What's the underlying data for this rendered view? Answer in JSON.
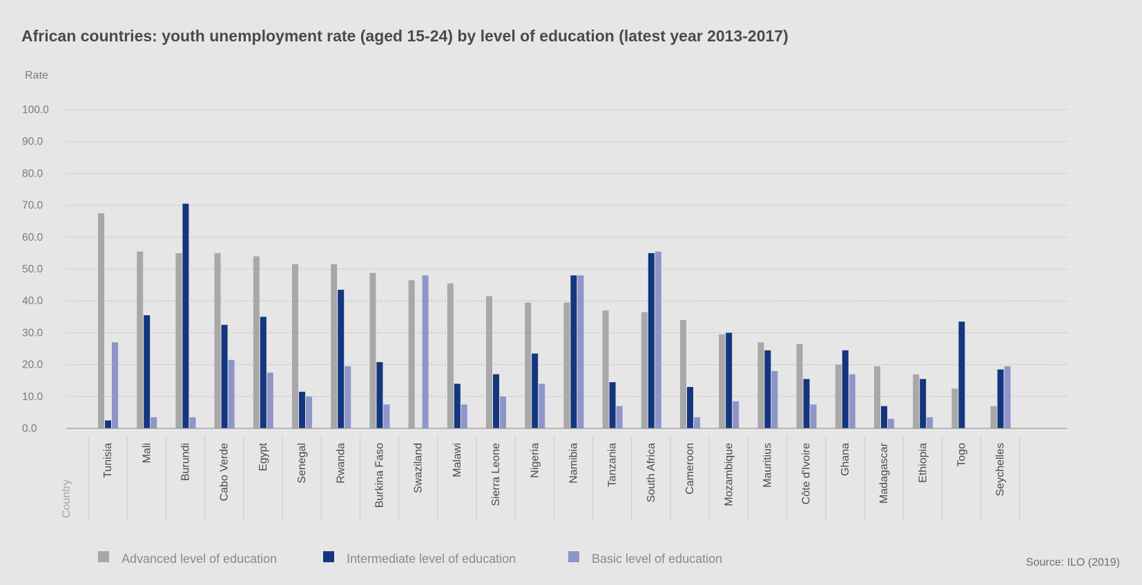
{
  "chart_data": {
    "type": "bar",
    "title": "African countries: youth unemployment rate (aged 15-24) by level of education (latest year 2013-2017)",
    "ylabel": "Rate",
    "xlabel": "Country",
    "ylim": [
      0,
      100
    ],
    "yticks": [
      "0.0",
      "10.0",
      "20.0",
      "30.0",
      "40.0",
      "50.0",
      "60.0",
      "70.0",
      "80.0",
      "90.0",
      "100.0"
    ],
    "grid": true,
    "legend_position": "bottom",
    "categories": [
      "Tunisia",
      "Mali",
      "Burundi",
      "Cabo Verde",
      "Egypt",
      "Senegal",
      "Rwanda",
      "Burkina Faso",
      "Swaziland",
      "Malawi",
      "Sierra Leone",
      "Nigeria",
      "Namibia",
      "Tanzania",
      "South Africa",
      "Cameroon",
      "Mozambique",
      "Mauritius",
      "Côte d'Ivoire",
      "Ghana",
      "Madagascar",
      "Ethiopia",
      "Togo",
      "Seychelles"
    ],
    "series": [
      {
        "name": "Advanced level of education",
        "color": "#a8a8a8",
        "values": [
          67.5,
          55.5,
          55.0,
          55.0,
          54.0,
          51.5,
          51.5,
          48.8,
          46.5,
          45.5,
          41.5,
          39.5,
          39.5,
          37.0,
          36.5,
          34.0,
          29.5,
          27.0,
          26.5,
          20.0,
          19.5,
          17.0,
          12.5,
          7.0
        ]
      },
      {
        "name": "Intermediate level of education",
        "color": "#13367f",
        "values": [
          2.5,
          35.5,
          70.5,
          32.5,
          35.0,
          11.5,
          43.5,
          20.8,
          0,
          14.0,
          17.0,
          23.5,
          48.0,
          14.5,
          55.0,
          13.0,
          30.0,
          24.5,
          15.5,
          24.5,
          7.0,
          15.5,
          33.5,
          18.5
        ]
      },
      {
        "name": "Basic level of education",
        "color": "#8e95c8",
        "values": [
          27.0,
          3.5,
          3.5,
          21.5,
          17.5,
          10.0,
          19.5,
          7.5,
          48.0,
          7.5,
          10.0,
          14.0,
          48.0,
          7.0,
          55.5,
          3.5,
          8.5,
          18.0,
          7.5,
          17.0,
          3.0,
          3.5,
          0,
          19.5
        ]
      }
    ],
    "source": "Source: ILO (2019)"
  }
}
